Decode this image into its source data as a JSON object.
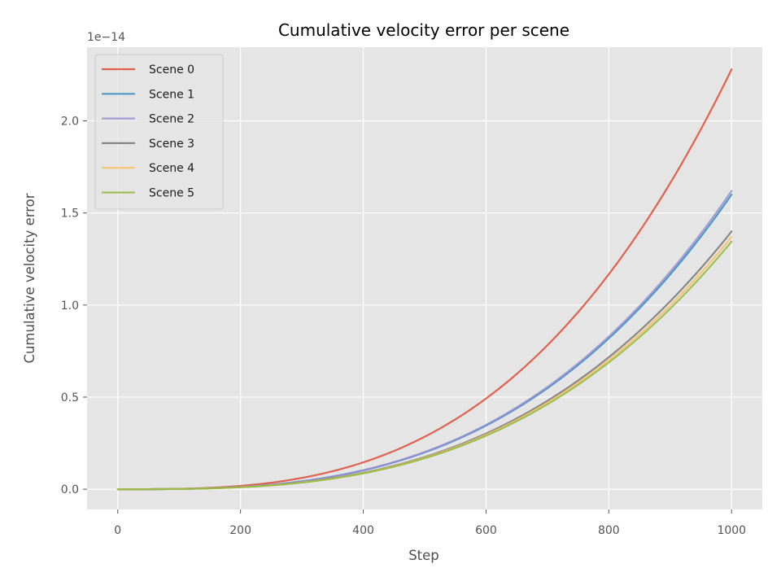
{
  "chart_data": {
    "type": "line",
    "title": "Cumulative velocity error per scene",
    "xlabel": "Step",
    "ylabel": "Cumulative velocity error",
    "y_offset_label": "1e−14",
    "y_scale_exponent": -14,
    "xlim": [
      -50,
      1050
    ],
    "ylim": [
      -0.11,
      2.4
    ],
    "xticks": [
      0,
      200,
      400,
      600,
      800,
      1000
    ],
    "xtick_labels": [
      "0",
      "200",
      "400",
      "600",
      "800",
      "1000"
    ],
    "yticks": [
      0.0,
      0.5,
      1.0,
      1.5,
      2.0
    ],
    "ytick_labels": [
      "0.0",
      "0.5",
      "1.0",
      "1.5",
      "2.0"
    ],
    "grid": true,
    "legend_position": "top-left",
    "curve_shape": "cubic",
    "x_range": [
      0,
      1000
    ],
    "series": [
      {
        "name": "Scene 0",
        "color": "#E24A33",
        "final_value": 2.28
      },
      {
        "name": "Scene 1",
        "color": "#348ABD",
        "final_value": 1.6
      },
      {
        "name": "Scene 2",
        "color": "#988ED5",
        "final_value": 1.62
      },
      {
        "name": "Scene 3",
        "color": "#777777",
        "final_value": 1.4
      },
      {
        "name": "Scene 4",
        "color": "#FBC15E",
        "final_value": 1.37
      },
      {
        "name": "Scene 5",
        "color": "#8EBA42",
        "final_value": 1.345
      }
    ]
  }
}
